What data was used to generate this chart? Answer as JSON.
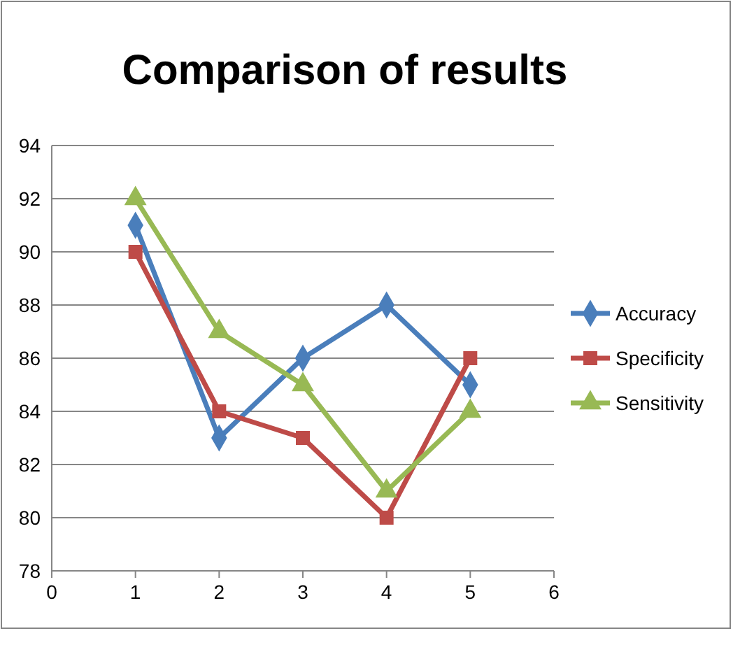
{
  "chart_data": {
    "type": "line",
    "title": "Comparison of results",
    "x": [
      1,
      2,
      3,
      4,
      5
    ],
    "series": [
      {
        "name": "Accuracy",
        "color": "#4a7ebb",
        "values": [
          91,
          83,
          86,
          88,
          85
        ],
        "marker": "diamond"
      },
      {
        "name": "Specificity",
        "color": "#be4b48",
        "values": [
          90,
          84,
          83,
          80,
          86
        ],
        "marker": "square"
      },
      {
        "name": "Sensitivity",
        "color": "#98b954",
        "values": [
          92,
          87,
          85,
          81,
          84
        ],
        "marker": "triangle"
      }
    ],
    "xlim": [
      0,
      6
    ],
    "xticks": [
      0,
      1,
      2,
      3,
      4,
      5,
      6
    ],
    "ylim": [
      78,
      94
    ],
    "yticks": [
      78,
      80,
      82,
      84,
      86,
      88,
      90,
      92,
      94
    ],
    "grid": "y",
    "legend": "right"
  }
}
